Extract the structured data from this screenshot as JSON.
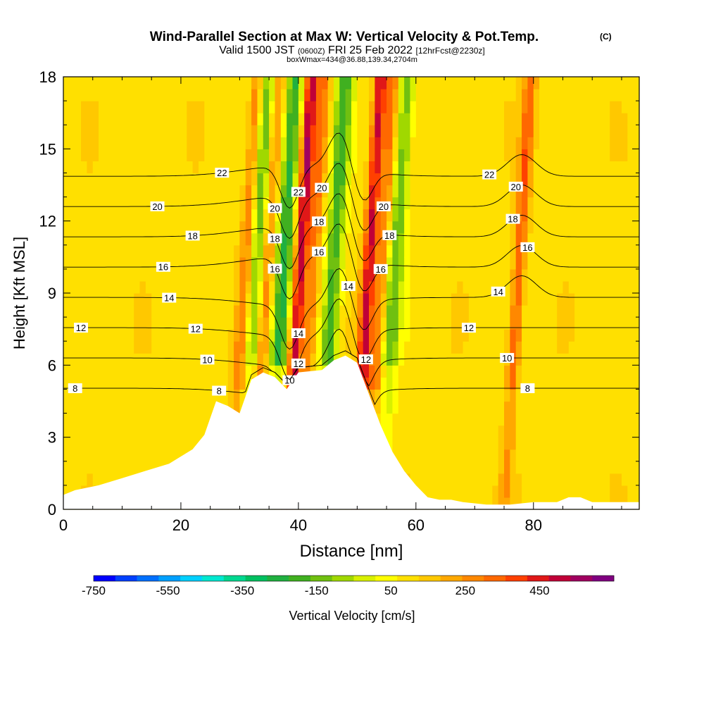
{
  "chart_data": {
    "type": "heatmap",
    "title": "Wind-Parallel Section at Max W: Vertical Velocity & Pot.Temp.",
    "title_mark": "(C)",
    "subtitle": {
      "valid": "Valid 1500 JST",
      "utc": "(0600Z)",
      "date": "FRI 25 Feb 2022",
      "fcst": "[12hrFcst@2230z]"
    },
    "subtitle2": "boxWmax=434@36.88,139.34,2704m",
    "xlabel": "Distance [nm]",
    "ylabel": "Height [Kft MSL]",
    "xlim": [
      0,
      98
    ],
    "ylim": [
      0,
      18
    ],
    "xticks": [
      "0",
      "20",
      "40",
      "60",
      "80"
    ],
    "yticks": [
      "0",
      "3",
      "6",
      "9",
      "12",
      "15",
      "18"
    ],
    "colorbar": {
      "label": "Vertical Velocity [cm/s]",
      "tick_labels": [
        "-750",
        "-550",
        "-350",
        "-150",
        "50",
        "250",
        "450"
      ],
      "range": [
        -750,
        650
      ],
      "colors": [
        "#0000ff",
        "#0040ff",
        "#0070ff",
        "#00a0ff",
        "#00d0ff",
        "#00e8d0",
        "#00d890",
        "#00c060",
        "#20b040",
        "#40b020",
        "#70c010",
        "#a0d800",
        "#d8f000",
        "#ffff00",
        "#ffe000",
        "#ffc800",
        "#ffa800",
        "#ff8800",
        "#ff6800",
        "#ff4000",
        "#e01818",
        "#c00038",
        "#a00060",
        "#800080"
      ]
    },
    "background_w": 100,
    "updrafts": [
      {
        "x": 30.0,
        "w": 200
      },
      {
        "x": 33.6,
        "w": 200
      },
      {
        "x": 39.3,
        "w": 420
      },
      {
        "x": 41.5,
        "w": 200
      },
      {
        "x": 51.0,
        "w": 380
      },
      {
        "x": 53.2,
        "w": 200
      },
      {
        "x": 76.5,
        "w": 250
      }
    ],
    "downdrafts": [
      {
        "x": 32.0,
        "w": -250
      },
      {
        "x": 36.5,
        "w": -350
      },
      {
        "x": 45.0,
        "w": -300
      },
      {
        "x": 55.5,
        "w": -250
      }
    ],
    "terrain": {
      "x": [
        0,
        2,
        6,
        10,
        14,
        18,
        22,
        24,
        26,
        28,
        30,
        32,
        34,
        36,
        38,
        40,
        44,
        46,
        48,
        50,
        52,
        54,
        56,
        58,
        60,
        62,
        64,
        66,
        68,
        70,
        72,
        76,
        80,
        84,
        86,
        88,
        90,
        92,
        98
      ],
      "h": [
        0.6,
        0.8,
        1.0,
        1.3,
        1.6,
        1.9,
        2.5,
        3.1,
        4.5,
        4.3,
        4.0,
        5.4,
        5.7,
        5.5,
        5.0,
        5.7,
        5.8,
        6.2,
        6.4,
        6.1,
        4.8,
        3.5,
        2.4,
        1.6,
        1.0,
        0.5,
        0.4,
        0.4,
        0.3,
        0.25,
        0.2,
        0.2,
        0.3,
        0.3,
        0.5,
        0.5,
        0.3,
        0.3,
        0.3
      ]
    },
    "isentropes": [
      {
        "value": 8,
        "show_label": true,
        "labels": [
          {
            "x": 2,
            "text": "8"
          },
          {
            "x": 26.5,
            "text": "8"
          },
          {
            "x": 79,
            "text": "8"
          }
        ]
      },
      {
        "value": 10,
        "show_label": true,
        "labels": [
          {
            "x": 24.5,
            "text": "10"
          },
          {
            "x": 38.5,
            "text": "10"
          },
          {
            "x": 75.5,
            "text": "10"
          }
        ]
      },
      {
        "value": 12,
        "show_label": true,
        "labels": [
          {
            "x": 3,
            "text": "12"
          },
          {
            "x": 22.5,
            "text": "12"
          },
          {
            "x": 40,
            "text": "12"
          },
          {
            "x": 51.5,
            "text": "12"
          },
          {
            "x": 69,
            "text": "12"
          }
        ]
      },
      {
        "value": 14,
        "show_label": true,
        "labels": [
          {
            "x": 18,
            "text": "14"
          },
          {
            "x": 40,
            "text": "14"
          },
          {
            "x": 48.5,
            "text": "14"
          },
          {
            "x": 74,
            "text": "14"
          }
        ]
      },
      {
        "value": 16,
        "show_label": true,
        "labels": [
          {
            "x": 17,
            "text": "16"
          },
          {
            "x": 36,
            "text": "16"
          },
          {
            "x": 43.5,
            "text": "16"
          },
          {
            "x": 54,
            "text": "16"
          },
          {
            "x": 79,
            "text": "16"
          }
        ]
      },
      {
        "value": 18,
        "show_label": true,
        "labels": [
          {
            "x": 22,
            "text": "18"
          },
          {
            "x": 36,
            "text": "18"
          },
          {
            "x": 43.5,
            "text": "18"
          },
          {
            "x": 55.5,
            "text": "18"
          },
          {
            "x": 76.5,
            "text": "18"
          }
        ]
      },
      {
        "value": 20,
        "show_label": true,
        "labels": [
          {
            "x": 16,
            "text": "20"
          },
          {
            "x": 36,
            "text": "20"
          },
          {
            "x": 44,
            "text": "20"
          },
          {
            "x": 54.5,
            "text": "20"
          },
          {
            "x": 77,
            "text": "20"
          }
        ]
      },
      {
        "value": 22,
        "show_label": true,
        "labels": [
          {
            "x": 27,
            "text": "22"
          },
          {
            "x": 40,
            "text": "22"
          },
          {
            "x": 72.5,
            "text": "22"
          }
        ]
      }
    ]
  }
}
